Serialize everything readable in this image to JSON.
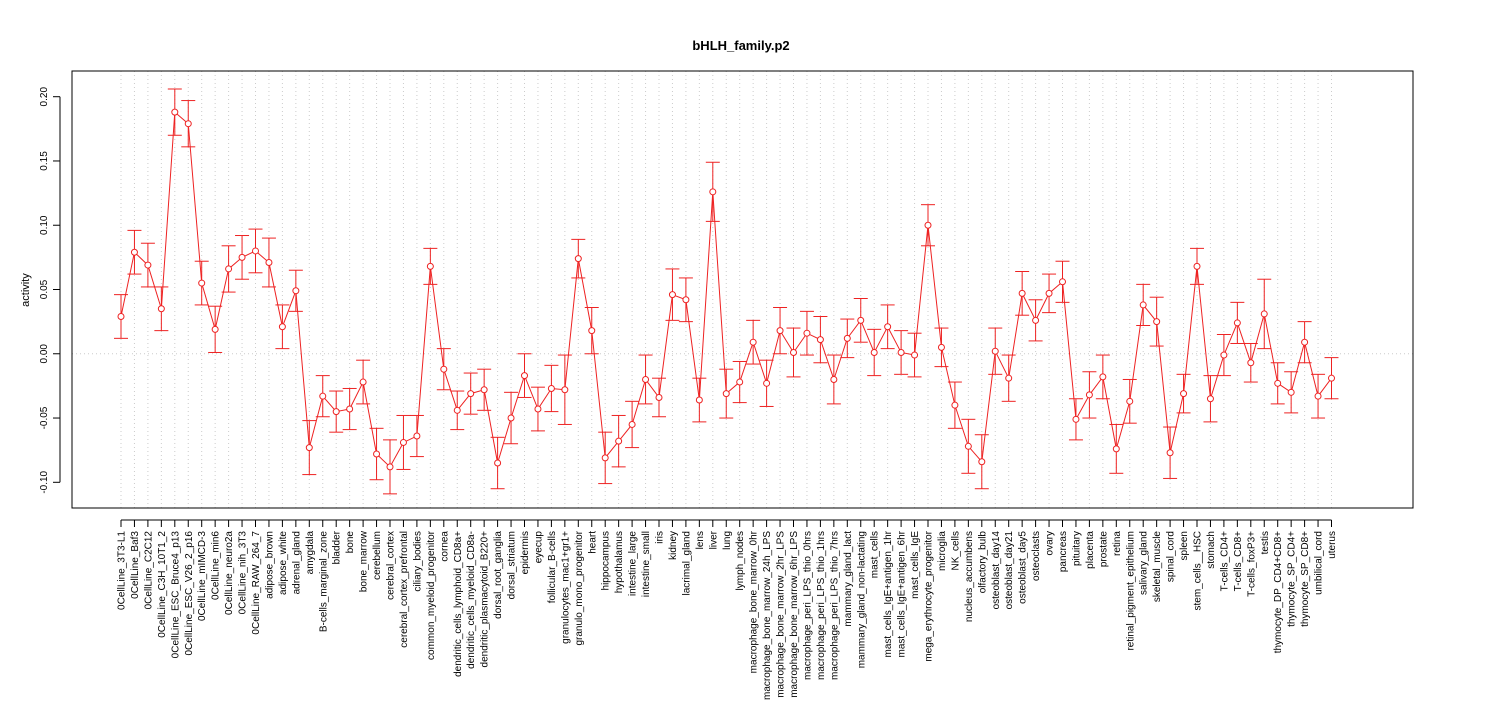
{
  "chart_data": {
    "type": "line",
    "title": "bHLH_family.p2",
    "xlabel": "",
    "ylabel": "activity",
    "ylim": [
      -0.12,
      0.22
    ],
    "y_ticks": [
      -0.1,
      -0.05,
      0.0,
      0.05,
      0.1,
      0.15,
      0.2
    ],
    "y_tick_labels": [
      "-0.10",
      "-0.05",
      "0.00",
      "0.05",
      "0.10",
      "0.15",
      "0.20"
    ],
    "grid": "vertical dotted lines at each category; dotted horizontal line at 0",
    "series_color": "#ee2222",
    "grid_color": "#cccccc",
    "categories": [
      "0CellLine_3T3-L1",
      "0CellLine_Baf3",
      "0CellLine_C2C12",
      "0CellLine_C3H_10T1_2",
      "0CellLine_ESC_Bruce4_p13",
      "0CellLine_ESC_V26_2_p16",
      "0CellLine_mIMCD-3",
      "0CellLine_min6",
      "0CellLine_neuro2a",
      "0CellLine_nih_3T3",
      "0CellLine_RAW_264_7",
      "adipose_brown",
      "adipose_white",
      "adrenal_gland",
      "amygdala",
      "B-cells_marginal_zone",
      "bladder",
      "bone",
      "bone_marrow",
      "cerebellum",
      "cerebral_cortex",
      "cerebral_cortex_prefrontal",
      "ciliary_bodies",
      "common_myeloid_progenitor",
      "cornea",
      "dendritic_cells_lymphoid_CD8a+",
      "dendritic_cells_myeloid_CD8a-",
      "dendritic_plasmacytoid_B220+",
      "dorsal_root_ganglia",
      "dorsal_striatum",
      "epidermis",
      "eyecup",
      "follicular_B-cells",
      "granulocytes_mac1+gr1+",
      "granulo_mono_progenitor",
      "heart",
      "hippocampus",
      "hypothalamus",
      "intestine_large",
      "intestine_small",
      "iris",
      "kidney",
      "lacrimal_gland",
      "lens",
      "liver",
      "lung",
      "lymph_nodes",
      "macrophage_bone_marrow_0hr",
      "macrophage_bone_marrow_24h_LPS",
      "macrophage_bone_marrow_2hr_LPS",
      "macrophage_bone_marrow_6hr_LPS",
      "macrophage_peri_LPS_thio_0hrs",
      "macrophage_peri_LPS_thio_1hrs",
      "macrophage_peri_LPS_thio_7hrs",
      "mammary_gland_lact",
      "mammary_gland_non-lactating",
      "mast_cells",
      "mast_cells_IgE+antigen_1hr",
      "mast_cells_IgE+antigen_6hr",
      "mast_cells_IgE",
      "mega_erythrocyte_progenitor",
      "microglia",
      "NK_cells",
      "nucleus_accumbens",
      "olfactory_bulb",
      "osteoblast_day14",
      "osteoblast_day21",
      "osteoblast_day5",
      "osteoclasts",
      "ovary",
      "pancreas",
      "pituitary",
      "placenta",
      "prostate",
      "retina",
      "retinal_pigment_epithelium",
      "salivary_gland",
      "skeletal_muscle",
      "spinal_cord",
      "spleen",
      "stem_cells__HSC",
      "stomach",
      "T-cells_CD4+",
      "T-cells_CD8+",
      "T-cells_foxP3+",
      "testis",
      "thymocyte_DP_CD4+CD8+",
      "thymocyte_SP_CD4+",
      "thymocyte_SP_CD8+",
      "umbilical_cord",
      "uterus"
    ],
    "values": [
      0.029,
      0.079,
      0.069,
      0.035,
      0.188,
      0.179,
      0.055,
      0.019,
      0.066,
      0.075,
      0.08,
      0.071,
      0.021,
      0.049,
      -0.073,
      -0.033,
      -0.045,
      -0.043,
      -0.022,
      -0.078,
      -0.088,
      -0.069,
      -0.064,
      0.068,
      -0.012,
      -0.044,
      -0.031,
      -0.028,
      -0.085,
      -0.05,
      -0.017,
      -0.043,
      -0.027,
      -0.028,
      0.074,
      0.018,
      -0.081,
      -0.068,
      -0.055,
      -0.02,
      -0.034,
      0.046,
      0.042,
      -0.036,
      0.126,
      -0.031,
      -0.022,
      0.009,
      -0.023,
      0.018,
      0.001,
      0.016,
      0.011,
      -0.02,
      0.012,
      0.026,
      0.001,
      0.021,
      0.001,
      -0.001,
      0.1,
      0.005,
      -0.04,
      -0.072,
      -0.084,
      0.002,
      -0.019,
      0.047,
      0.026,
      0.047,
      0.056,
      -0.051,
      -0.032,
      -0.018,
      -0.074,
      -0.037,
      0.038,
      0.025,
      -0.077,
      -0.031,
      0.068,
      -0.035,
      -0.001,
      0.024,
      -0.007,
      0.031,
      -0.023,
      -0.03,
      0.009,
      -0.033,
      -0.019
    ],
    "error": [
      0.017,
      0.017,
      0.017,
      0.017,
      0.018,
      0.018,
      0.017,
      0.018,
      0.018,
      0.017,
      0.017,
      0.019,
      0.017,
      0.016,
      0.021,
      0.016,
      0.016,
      0.016,
      0.017,
      0.02,
      0.021,
      0.021,
      0.016,
      0.014,
      0.016,
      0.015,
      0.016,
      0.016,
      0.02,
      0.02,
      0.017,
      0.017,
      0.018,
      0.027,
      0.015,
      0.018,
      0.02,
      0.02,
      0.018,
      0.019,
      0.015,
      0.02,
      0.017,
      0.017,
      0.023,
      0.019,
      0.016,
      0.017,
      0.018,
      0.018,
      0.019,
      0.017,
      0.018,
      0.019,
      0.015,
      0.017,
      0.018,
      0.017,
      0.017,
      0.017,
      0.016,
      0.015,
      0.018,
      0.021,
      0.021,
      0.018,
      0.018,
      0.017,
      0.016,
      0.015,
      0.016,
      0.016,
      0.018,
      0.017,
      0.019,
      0.017,
      0.016,
      0.019,
      0.02,
      0.015,
      0.014,
      0.018,
      0.016,
      0.016,
      0.015,
      0.027,
      0.016,
      0.016,
      0.016,
      0.017,
      0.016
    ]
  }
}
